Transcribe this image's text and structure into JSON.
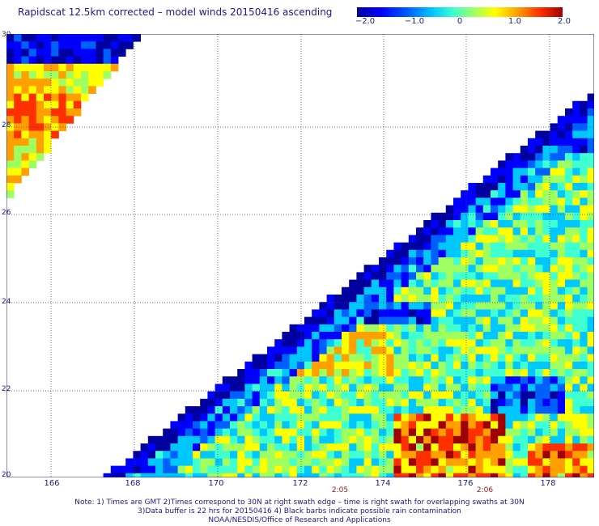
{
  "title": "Rapidscat 12.5km corrected – model winds 20150416 ascending",
  "colorbar": {
    "ticks": [
      "−2.0",
      "−1.0",
      "0",
      "1.0",
      "2.0"
    ],
    "colors": [
      "#0000a0",
      "#0000ff",
      "#0060ff",
      "#00c8ff",
      "#40ffd0",
      "#a0ff60",
      "#ffff00",
      "#ffa000",
      "#ff3000",
      "#a00000"
    ]
  },
  "axes": {
    "y_labels": [
      "30",
      "28",
      "26",
      "24",
      "22",
      "20"
    ],
    "x_labels": [
      "166",
      "168",
      "170",
      "172",
      "174",
      "176",
      "178"
    ]
  },
  "times": [
    "2:05",
    "2:06"
  ],
  "notes": {
    "line1": "Note: 1) Times are GMT 2)Times correspond to 30N at right swath edge – time is right swath for overlapping swaths at 30N",
    "line2": "3)Data buffer is 22 hrs for 20150416 4) Black barbs indicate possible rain contamination",
    "line3": "NOAA/NESDIS/Office of Research and Applications"
  }
}
